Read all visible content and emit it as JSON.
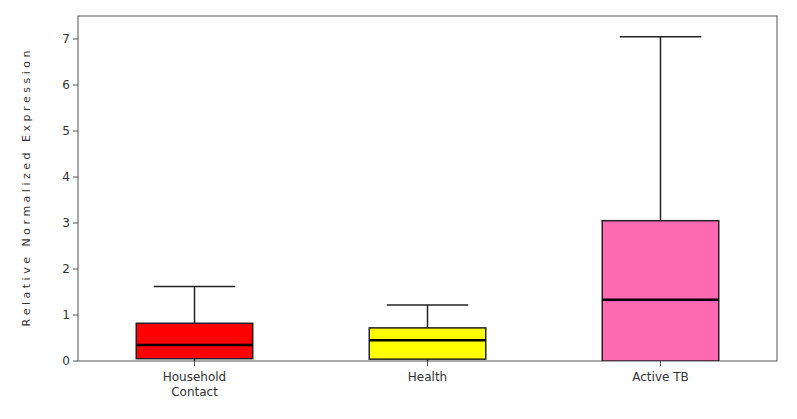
{
  "chart_data": {
    "type": "box",
    "categories": [
      "Household\nContact",
      "Health",
      "Active TB"
    ],
    "boxes": [
      {
        "q1": 0.05,
        "median": 0.35,
        "q3": 0.82,
        "whisker_low": 0.0,
        "whisker_high": 1.62
      },
      {
        "q1": 0.04,
        "median": 0.45,
        "q3": 0.72,
        "whisker_low": 0.0,
        "whisker_high": 1.22
      },
      {
        "q1": 0.0,
        "median": 1.33,
        "q3": 3.05,
        "whisker_low": 0.0,
        "whisker_high": 7.05
      }
    ],
    "colors": [
      "#FF0000",
      "#FFFF00",
      "#FF69B4"
    ],
    "ylabel": "R e l a t i v e   N o r m a l i z e d   E x p r e s s i o n",
    "ylim": [
      0,
      7.5
    ],
    "yticks": [
      0,
      1,
      2,
      3,
      4,
      5,
      6,
      7
    ],
    "grid": false
  }
}
